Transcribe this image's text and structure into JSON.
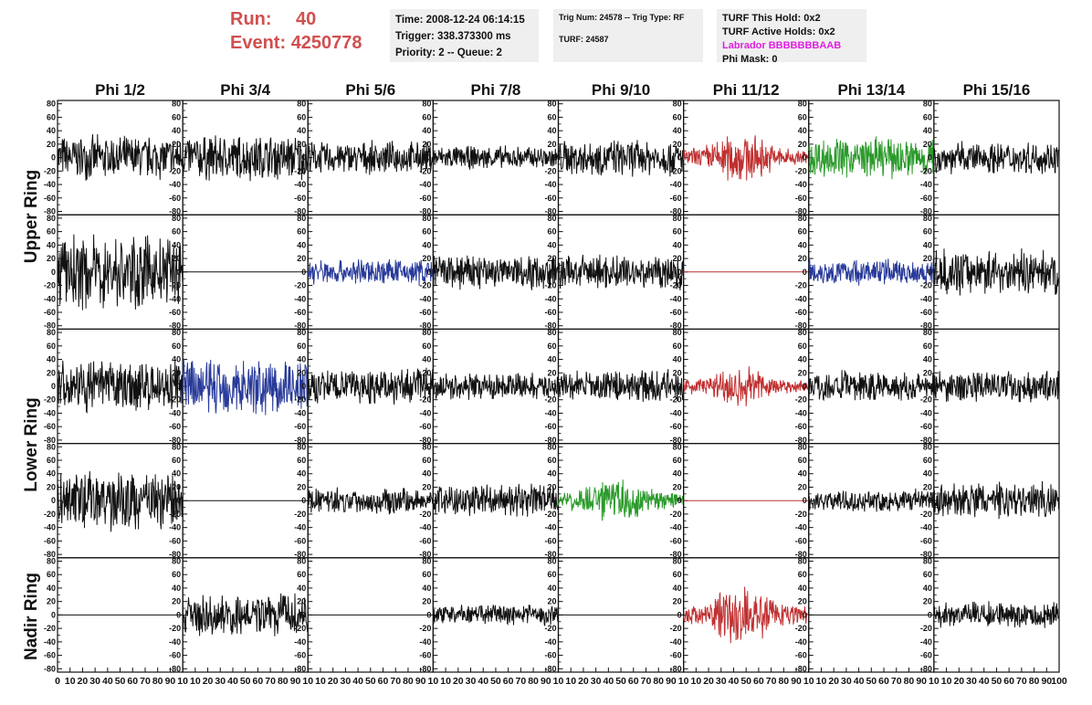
{
  "header": {
    "run_label": "Run:",
    "run_value": "40",
    "event_label": "Event:",
    "event_value": "4250778"
  },
  "info_time": {
    "time": "Time: 2008-12-24 06:14:15",
    "trigger": "Trigger: 338.373300 ms",
    "priority": "Priority: 2 -- Queue: 2"
  },
  "info_trig": {
    "trig": "Trig Num: 24578 -- Trig Type: RF",
    "turf": "TURF: 24587"
  },
  "info_turf": {
    "this_hold": "TURF This Hold: 0x2",
    "active_holds": "TURF Active Holds: 0x2",
    "labrador": "Labrador BBBBBBBAAB",
    "phi_mask": "Phi Mask: 0"
  },
  "colors": {
    "black": "#111111",
    "red": "#c03030",
    "green": "#2a9a2a",
    "blue": "#283a9a",
    "labrador": "#e020e0",
    "run_text": "#d05050",
    "info_bg": "#efefef"
  },
  "chart_data": {
    "type": "line",
    "columns": [
      "Phi 1/2",
      "Phi 3/4",
      "Phi 5/6",
      "Phi 7/8",
      "Phi 9/10",
      "Phi 11/12",
      "Phi 13/14",
      "Phi 15/16"
    ],
    "ring_labels": [
      "Upper Ring",
      "Lower Ring",
      "Nadir Ring"
    ],
    "ylim": [
      -85,
      85
    ],
    "xlim": [
      0,
      100
    ],
    "y_ticks": [
      80,
      60,
      40,
      20,
      0,
      -20,
      -40,
      -60,
      -80
    ],
    "x_ticks": [
      0,
      10,
      20,
      30,
      40,
      50,
      60,
      70,
      80,
      90,
      100
    ],
    "x_tick_labels": [
      "0",
      "10",
      "20",
      "30",
      "40",
      "50",
      "60",
      "70",
      "80",
      "90",
      "100"
    ],
    "panels": [
      [
        {
          "color": "black",
          "amplitude": 30,
          "flat": false
        },
        {
          "color": "black",
          "amplitude": 32,
          "flat": false
        },
        {
          "color": "black",
          "amplitude": 22,
          "flat": false
        },
        {
          "color": "black",
          "amplitude": 16,
          "flat": false
        },
        {
          "color": "black",
          "amplitude": 25,
          "flat": false
        },
        {
          "color": "red",
          "amplitude": 30,
          "flat": false,
          "envelope": true
        },
        {
          "color": "green",
          "amplitude": 28,
          "flat": false
        },
        {
          "color": "black",
          "amplitude": 22,
          "flat": false
        }
      ],
      [
        {
          "color": "black",
          "amplitude": 50,
          "flat": false
        },
        {
          "color": "black",
          "amplitude": 0,
          "flat": true
        },
        {
          "color": "blue",
          "amplitude": 18,
          "flat": false
        },
        {
          "color": "black",
          "amplitude": 25,
          "flat": false
        },
        {
          "color": "black",
          "amplitude": 24,
          "flat": false
        },
        {
          "color": "red",
          "amplitude": 0,
          "flat": true
        },
        {
          "color": "blue",
          "amplitude": 18,
          "flat": false
        },
        {
          "color": "black",
          "amplitude": 30,
          "flat": false
        }
      ],
      [
        {
          "color": "black",
          "amplitude": 35,
          "flat": false
        },
        {
          "color": "blue",
          "amplitude": 40,
          "flat": false
        },
        {
          "color": "black",
          "amplitude": 24,
          "flat": false
        },
        {
          "color": "black",
          "amplitude": 18,
          "flat": false
        },
        {
          "color": "black",
          "amplitude": 22,
          "flat": false
        },
        {
          "color": "red",
          "amplitude": 25,
          "flat": false,
          "envelope": true
        },
        {
          "color": "black",
          "amplitude": 22,
          "flat": false
        },
        {
          "color": "black",
          "amplitude": 22,
          "flat": false
        }
      ],
      [
        {
          "color": "black",
          "amplitude": 40,
          "flat": false
        },
        {
          "color": "black",
          "amplitude": 0,
          "flat": true
        },
        {
          "color": "black",
          "amplitude": 18,
          "flat": false
        },
        {
          "color": "black",
          "amplitude": 22,
          "flat": false
        },
        {
          "color": "green",
          "amplitude": 28,
          "flat": false,
          "envelope": true
        },
        {
          "color": "red",
          "amplitude": 0,
          "flat": true
        },
        {
          "color": "black",
          "amplitude": 15,
          "flat": false
        },
        {
          "color": "black",
          "amplitude": 25,
          "flat": false
        }
      ],
      [
        {
          "color": "black",
          "amplitude": 0,
          "flat": true
        },
        {
          "color": "black",
          "amplitude": 28,
          "flat": false
        },
        {
          "color": "black",
          "amplitude": 0,
          "flat": true
        },
        {
          "color": "black",
          "amplitude": 14,
          "flat": false
        },
        {
          "color": "black",
          "amplitude": 0,
          "flat": true
        },
        {
          "color": "red",
          "amplitude": 35,
          "flat": false,
          "envelope": true
        },
        {
          "color": "black",
          "amplitude": 0,
          "flat": true
        },
        {
          "color": "black",
          "amplitude": 18,
          "flat": false
        }
      ]
    ]
  }
}
